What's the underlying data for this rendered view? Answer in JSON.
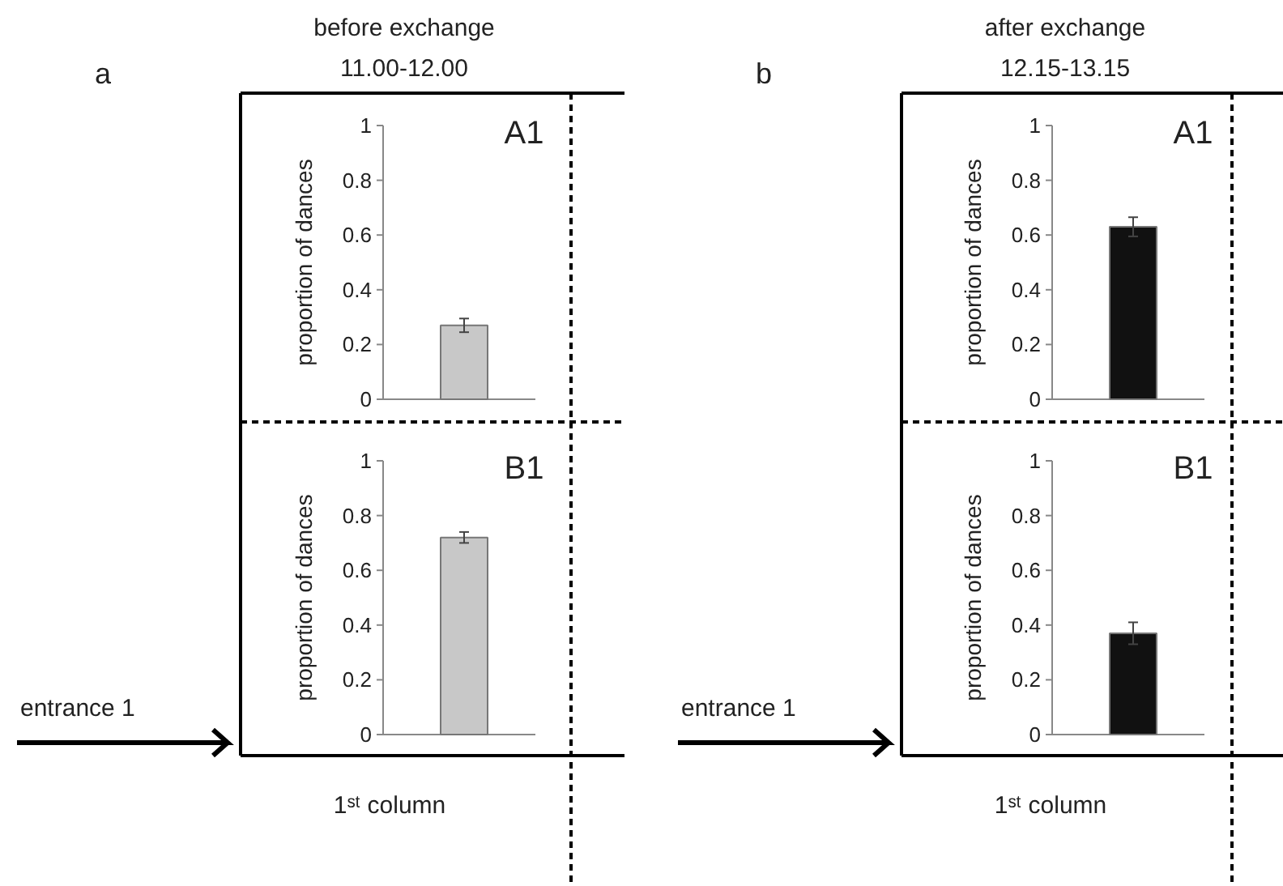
{
  "chart_data": [
    {
      "type": "bar",
      "title": "A1",
      "ylabel": "proportion of dances",
      "categories": [
        null
      ],
      "values": [
        0.27
      ],
      "errors": [
        0.025
      ],
      "color": "#c8c8c8",
      "ylim": [
        0,
        1
      ],
      "yticks": [
        0,
        0.2,
        0.4,
        0.6,
        0.8,
        1
      ],
      "grid": false,
      "annotations": [
        "a",
        "before exchange",
        "11.00-12.00"
      ]
    },
    {
      "type": "bar",
      "title": "B1",
      "ylabel": "proportion of dances",
      "categories": [
        null
      ],
      "values": [
        0.72
      ],
      "errors": [
        0.02
      ],
      "color": "#c8c8c8",
      "ylim": [
        0,
        1
      ],
      "yticks": [
        0,
        0.2,
        0.4,
        0.6,
        0.8,
        1
      ],
      "grid": false,
      "annotations": [
        "entrance 1",
        "1ˢᵗ column"
      ]
    },
    {
      "type": "bar",
      "title": "A1",
      "ylabel": "proportion of dances",
      "categories": [
        null
      ],
      "values": [
        0.63
      ],
      "errors": [
        0.035
      ],
      "color": "#111111",
      "ylim": [
        0,
        1
      ],
      "yticks": [
        0,
        0.2,
        0.4,
        0.6,
        0.8,
        1
      ],
      "grid": false,
      "annotations": [
        "b",
        "after exchange",
        "12.15-13.15"
      ]
    },
    {
      "type": "bar",
      "title": "B1",
      "ylabel": "proportion of dances",
      "categories": [
        null
      ],
      "values": [
        0.37
      ],
      "errors": [
        0.04
      ],
      "color": "#111111",
      "ylim": [
        0,
        1
      ],
      "yticks": [
        0,
        0.2,
        0.4,
        0.6,
        0.8,
        1
      ],
      "grid": false,
      "annotations": [
        "entrance 1",
        "1ˢᵗ column"
      ]
    }
  ]
}
